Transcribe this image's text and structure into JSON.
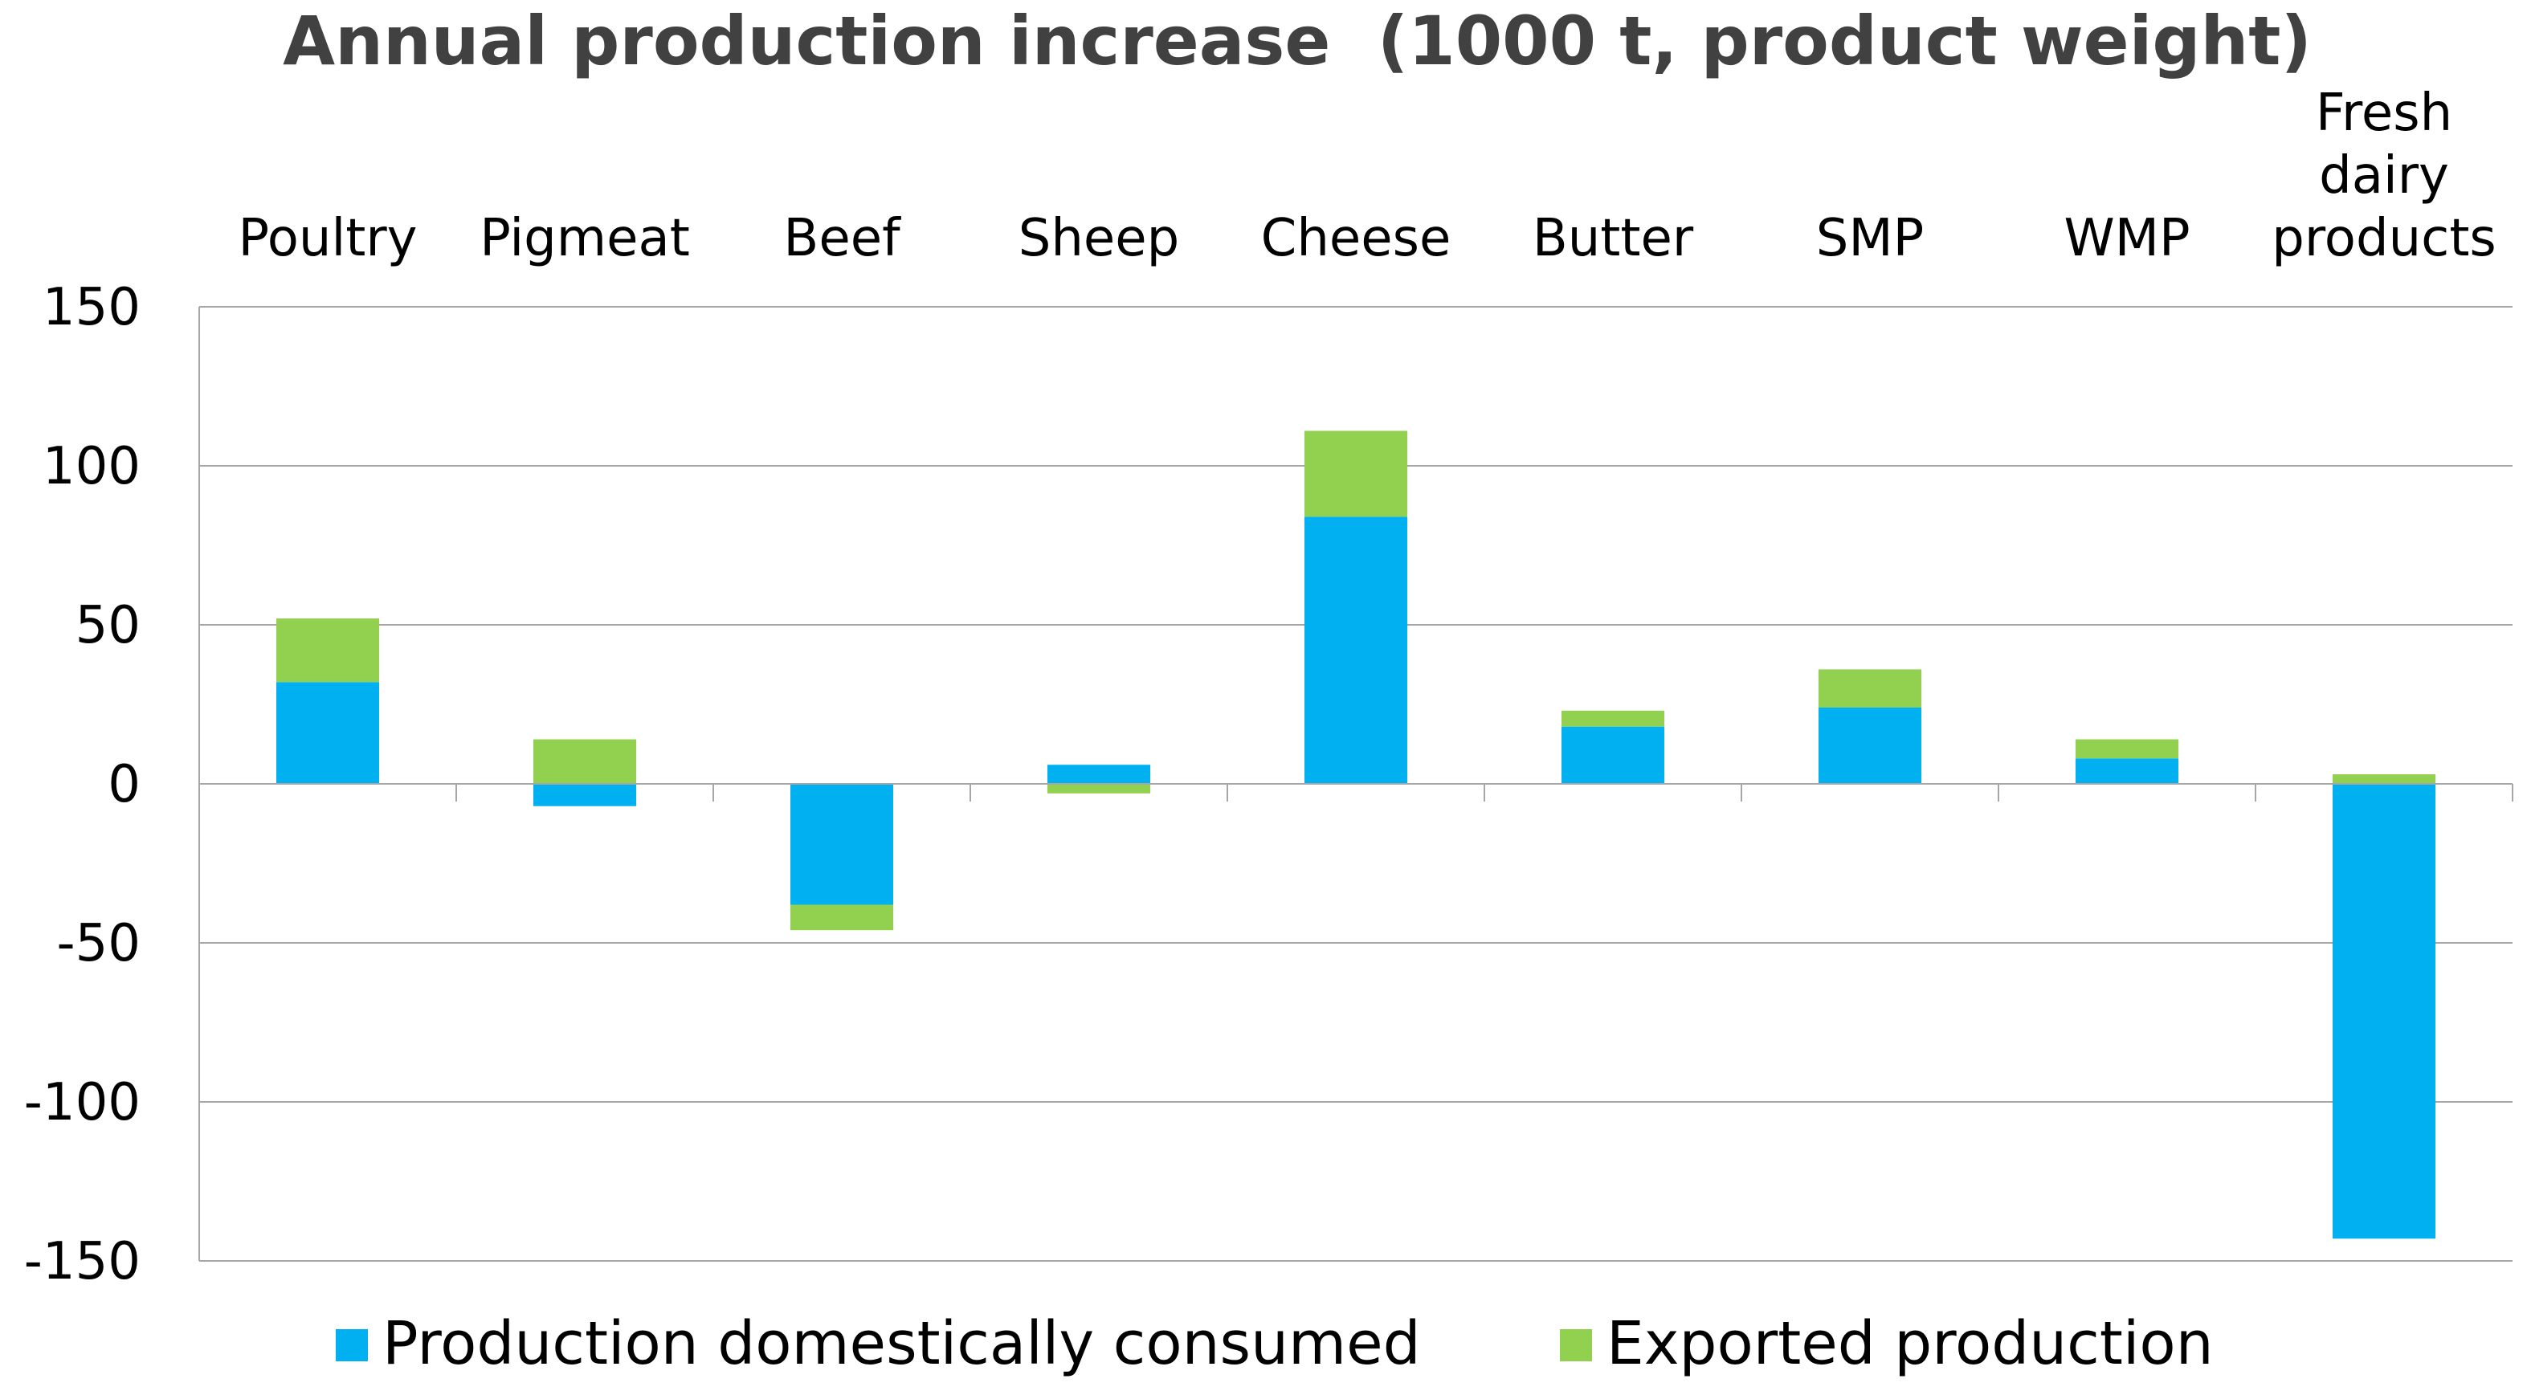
{
  "chart_data": {
    "type": "bar",
    "stacked": true,
    "title": "Annual production increase  (1000 t, product weight)",
    "categories": [
      [
        "Poultry"
      ],
      [
        "Pigmeat"
      ],
      [
        "Beef"
      ],
      [
        "Sheep"
      ],
      [
        "Cheese"
      ],
      [
        "Butter"
      ],
      [
        "SMP"
      ],
      [
        "WMP"
      ],
      [
        "Fresh",
        "dairy",
        "products"
      ]
    ],
    "series": [
      {
        "name": "Production domestically consumed",
        "color": "#00b0f0",
        "values": [
          32,
          -7,
          -38,
          6,
          84,
          18,
          24,
          8,
          -143
        ]
      },
      {
        "name": "Exported production",
        "color": "#92d050",
        "values": [
          20,
          14,
          -8,
          -3,
          27,
          5,
          12,
          6,
          3
        ]
      }
    ],
    "yticks": [
      "150",
      "100",
      "50",
      "0",
      "-50",
      "-100",
      "-150"
    ],
    "ylim": [
      -150,
      150
    ],
    "grid": true,
    "legend_position": "bottom",
    "category_labels_position": "top"
  }
}
